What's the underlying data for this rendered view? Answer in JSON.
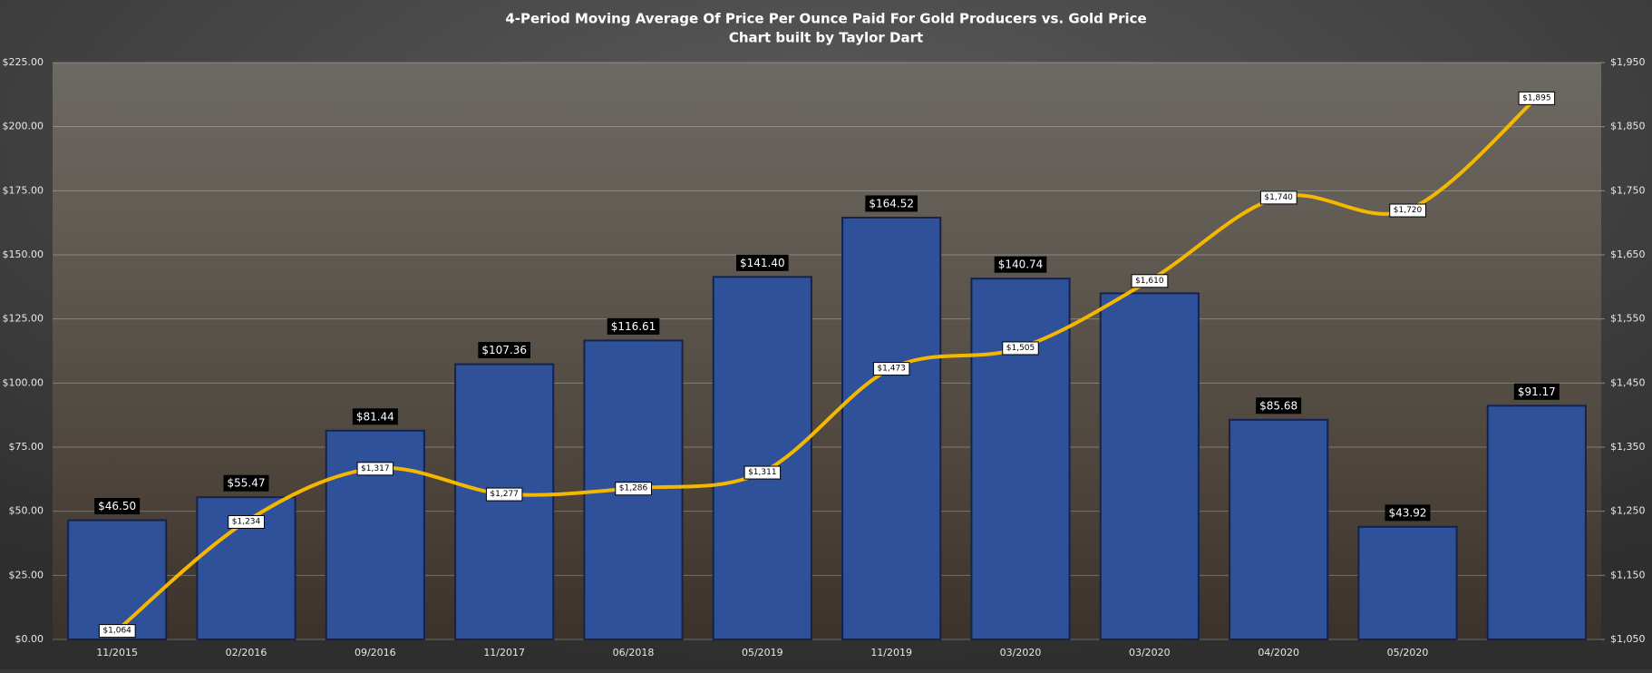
{
  "chart_data": {
    "type": "combo",
    "title": "4-Period Moving Average Of Price Per Ounce Paid For Gold Producers vs. Gold Price",
    "subtitle": "Chart built by Taylor Dart",
    "categories": [
      "11/2015",
      "02/2016",
      "09/2016",
      "11/2017",
      "06/2018",
      "05/2019",
      "11/2019",
      "03/2020",
      "03/2020",
      "04/2020",
      "05/2020",
      null
    ],
    "series": [
      {
        "type": "bar",
        "color": "#2f5199",
        "values": [
          46.5,
          55.47,
          81.44,
          107.36,
          116.61,
          141.4,
          164.52,
          140.74,
          135,
          85.68,
          43.92,
          91.17
        ],
        "value_labels": [
          "$46.50",
          "$55.47",
          "$81.44",
          "$107.36",
          "$116.61",
          "$141.40",
          "$164.52",
          "$140.74",
          null,
          "$85.68",
          "$43.92",
          "$91.17"
        ]
      },
      {
        "type": "line",
        "axis": "y2",
        "color": "#f5b800",
        "values": [
          1064,
          1234,
          1317,
          1277,
          1286,
          1311,
          1473,
          1505,
          1610,
          1740,
          1720,
          1895
        ],
        "value_labels": [
          "$1,064",
          "$1,234",
          "$1,317",
          "$1,277",
          "$1,286",
          "$1,311",
          "$1,473",
          "$1,505",
          "$1,610",
          "$1,740",
          "$1,720",
          "$1,895"
        ]
      }
    ],
    "ylim": [
      0,
      225
    ],
    "yticks": [
      {
        "value": 0,
        "label": "$0.00"
      },
      {
        "value": 25,
        "label": "$25.00"
      },
      {
        "value": 50,
        "label": "$50.00"
      },
      {
        "value": 75,
        "label": "$75.00"
      },
      {
        "value": 100,
        "label": "$100.00"
      },
      {
        "value": 125,
        "label": "$125.00"
      },
      {
        "value": 150,
        "label": "$150.00"
      },
      {
        "value": 175,
        "label": "$175.00"
      },
      {
        "value": 200,
        "label": "$200.00"
      },
      {
        "value": 225,
        "label": "$225.00"
      }
    ],
    "y2lim": [
      1050,
      1950
    ],
    "y2ticks": [
      {
        "value": 1050,
        "label": "$1,050"
      },
      {
        "value": 1150,
        "label": "$1,150"
      },
      {
        "value": 1250,
        "label": "$1,250"
      },
      {
        "value": 1350,
        "label": "$1,350"
      },
      {
        "value": 1450,
        "label": "$1,450"
      },
      {
        "value": 1550,
        "label": "$1,550"
      },
      {
        "value": 1650,
        "label": "$1,650"
      },
      {
        "value": 1750,
        "label": "$1,750"
      },
      {
        "value": 1850,
        "label": "$1,850"
      },
      {
        "value": 1950,
        "label": "$1,950"
      }
    ],
    "grid": true
  }
}
